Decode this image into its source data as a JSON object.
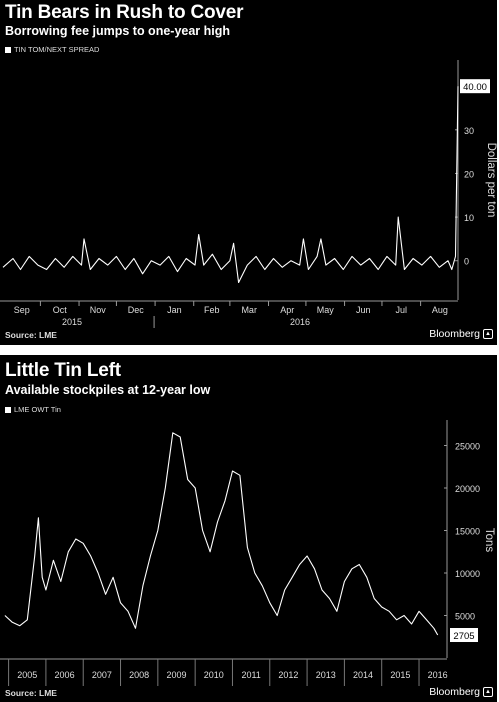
{
  "chart_data": [
    {
      "type": "line",
      "title": "Tin Bears in Rush to Cover",
      "subtitle": "Borrowing fee jumps to one-year high",
      "legend": "TIN TOM/NEXT SPREAD",
      "ylabel": "Dollars per ton",
      "ylim": [
        -9,
        46
      ],
      "yticks": [
        0,
        10,
        20,
        30
      ],
      "last_value_label": "40.00",
      "xlim": [
        "2015-09-01",
        "2016-08-31"
      ],
      "month_labels": [
        "Sep",
        "Oct",
        "Nov",
        "Dec",
        "Jan",
        "Feb",
        "Mar",
        "Apr",
        "May",
        "Jun",
        "Jul",
        "Aug"
      ],
      "year_labels": [
        "2015",
        "2016"
      ],
      "source": "Source: LME",
      "brand": "Bloomberg",
      "series": [
        {
          "x": [
            "2015-09-01",
            "2015-09-09",
            "2015-09-15",
            "2015-09-22",
            "2015-09-29",
            "2015-10-06",
            "2015-10-13",
            "2015-10-20",
            "2015-10-27",
            "2015-11-03",
            "2015-11-05",
            "2015-11-10",
            "2015-11-17",
            "2015-11-24",
            "2015-12-01",
            "2015-12-08",
            "2015-12-15",
            "2015-12-22",
            "2015-12-29",
            "2016-01-05",
            "2016-01-12",
            "2016-01-19",
            "2016-01-26",
            "2016-02-02",
            "2016-02-05",
            "2016-02-09",
            "2016-02-16",
            "2016-02-23",
            "2016-03-01",
            "2016-03-04",
            "2016-03-08",
            "2016-03-15",
            "2016-03-22",
            "2016-03-29",
            "2016-04-05",
            "2016-04-12",
            "2016-04-19",
            "2016-04-26",
            "2016-04-29",
            "2016-05-03",
            "2016-05-10",
            "2016-05-13",
            "2016-05-17",
            "2016-05-24",
            "2016-05-31",
            "2016-06-07",
            "2016-06-14",
            "2016-06-21",
            "2016-06-28",
            "2016-07-05",
            "2016-07-12",
            "2016-07-14",
            "2016-07-19",
            "2016-07-26",
            "2016-08-02",
            "2016-08-09",
            "2016-08-16",
            "2016-08-23",
            "2016-08-26",
            "2016-08-29",
            "2016-08-31"
          ],
          "y": [
            -1.5,
            0.5,
            -2,
            1,
            -1,
            -2,
            0.5,
            -1.5,
            1,
            -1,
            5,
            -2,
            0.5,
            -1,
            1,
            -2,
            0.5,
            -3,
            0,
            -1,
            1,
            -2.5,
            0.5,
            -1,
            6,
            -1,
            1.5,
            -2,
            0,
            4,
            -5,
            -1,
            1,
            -2,
            0.5,
            -1.5,
            0,
            -1,
            5,
            -2,
            1,
            5,
            -1,
            0.5,
            -2,
            1,
            -1,
            0.5,
            -2,
            1,
            -1,
            10,
            -2,
            0.5,
            -1,
            1,
            -1.5,
            0,
            -2,
            1,
            40
          ]
        }
      ]
    },
    {
      "type": "line",
      "title": "Little Tin Left",
      "subtitle": "Available stockpiles at 12-year low",
      "legend": "LME OWT Tin",
      "ylabel": "Tons",
      "ylim": [
        0,
        28000
      ],
      "yticks": [
        5000,
        10000,
        15000,
        20000,
        25000
      ],
      "last_value_label": "2705",
      "xlim": [
        2004.85,
        2016.75
      ],
      "year_labels": [
        "2005",
        "2006",
        "2007",
        "2008",
        "2009",
        "2010",
        "2011",
        "2012",
        "2013",
        "2014",
        "2015",
        "2016"
      ],
      "source": "Source: LME",
      "brand": "Bloomberg",
      "series": [
        {
          "x": [
            2004.9,
            2005.1,
            2005.3,
            2005.5,
            2005.7,
            2005.8,
            2005.9,
            2006.0,
            2006.2,
            2006.4,
            2006.6,
            2006.8,
            2007.0,
            2007.2,
            2007.4,
            2007.6,
            2007.8,
            2008.0,
            2008.2,
            2008.4,
            2008.6,
            2008.8,
            2009.0,
            2009.2,
            2009.4,
            2009.6,
            2009.8,
            2010.0,
            2010.2,
            2010.4,
            2010.6,
            2010.8,
            2011.0,
            2011.2,
            2011.4,
            2011.6,
            2011.8,
            2012.0,
            2012.2,
            2012.4,
            2012.6,
            2012.8,
            2013.0,
            2013.2,
            2013.4,
            2013.6,
            2013.8,
            2014.0,
            2014.2,
            2014.4,
            2014.6,
            2014.8,
            2015.0,
            2015.2,
            2015.4,
            2015.6,
            2015.8,
            2016.0,
            2016.2,
            2016.4,
            2016.5
          ],
          "y": [
            5000,
            4200,
            3800,
            4500,
            12000,
            16500,
            9500,
            8000,
            11500,
            9000,
            12500,
            14000,
            13500,
            12000,
            10000,
            7500,
            9500,
            6500,
            5500,
            3500,
            8500,
            12000,
            15000,
            20000,
            26500,
            26000,
            21000,
            20000,
            15000,
            12500,
            16000,
            18500,
            22000,
            21500,
            13000,
            10000,
            8500,
            6500,
            5000,
            8000,
            9500,
            11000,
            12000,
            10500,
            8000,
            7000,
            5500,
            9000,
            10500,
            11000,
            9500,
            7000,
            6000,
            5500,
            4500,
            5000,
            4000,
            5500,
            4500,
            3500,
            2705
          ]
        }
      ]
    }
  ]
}
